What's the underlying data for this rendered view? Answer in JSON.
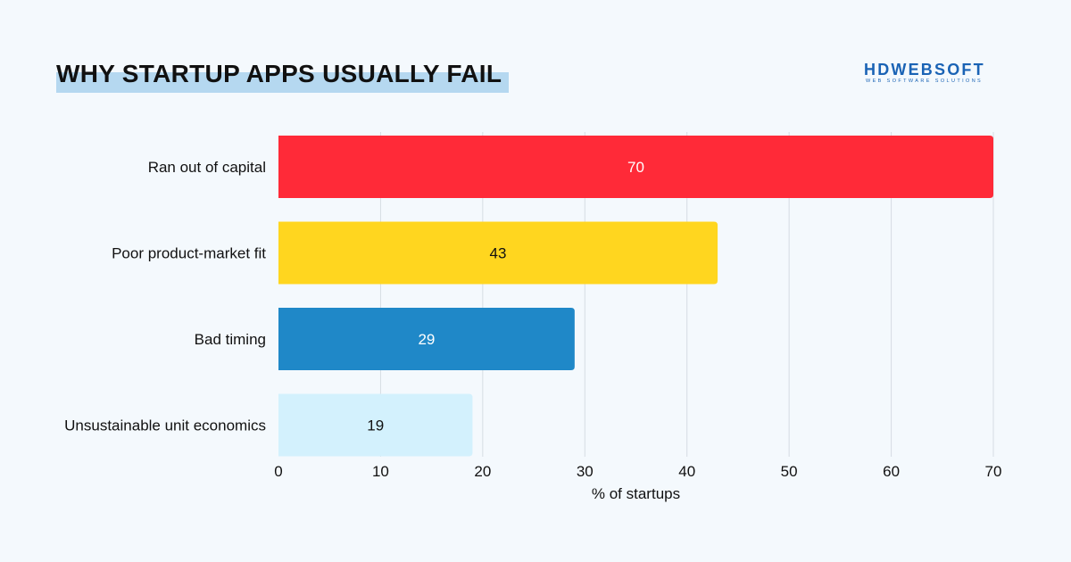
{
  "header": {
    "title": "WHY STARTUP APPS USUALLY FAIL",
    "logo_main": "HDWEBSOFT",
    "logo_sub": "WEB SOFTWARE SOLUTIONS"
  },
  "chart_data": {
    "type": "bar",
    "orientation": "horizontal",
    "title": "WHY STARTUP APPS USUALLY FAIL",
    "categories": [
      "Ran out of capital",
      "Poor product-market fit",
      "Bad timing",
      "Unsustainable unit economics"
    ],
    "values": [
      70,
      43,
      29,
      19
    ],
    "bar_colors": [
      "#ff2a38",
      "#ffd61f",
      "#1f88c8",
      "#d3f1fd"
    ],
    "value_label_colors": [
      "#ffffff",
      "#111111",
      "#ffffff",
      "#111111"
    ],
    "xlabel": "% of startups",
    "ylabel": "",
    "xlim": [
      0,
      70
    ],
    "xticks": [
      0,
      10,
      20,
      30,
      40,
      50,
      60,
      70
    ],
    "grid": true,
    "data_labels": true
  }
}
